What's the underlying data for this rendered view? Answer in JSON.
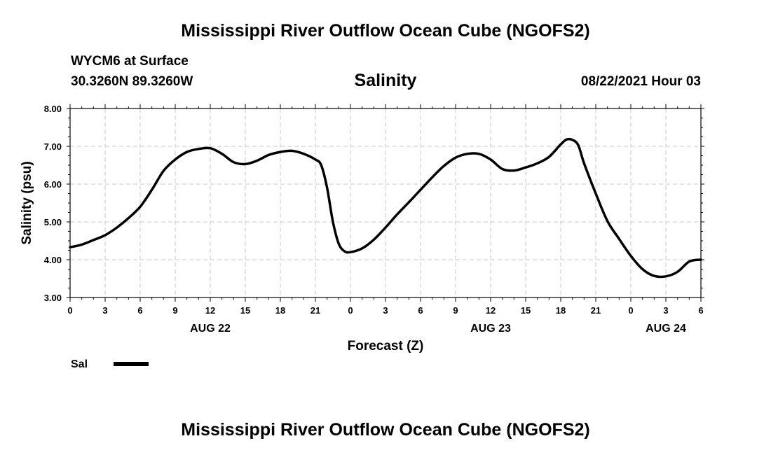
{
  "header": {
    "title": "Mississippi River Outflow Ocean Cube (NGOFS2)",
    "station": "WYCM6 at Surface",
    "coords": "30.3260N  89.3260W",
    "forecast_time": "08/22/2021 Hour 03"
  },
  "footer": {
    "title": "Mississippi River Outflow Ocean Cube (NGOFS2)"
  },
  "colors": {
    "line": "#000000",
    "grid": "#c8c8c8"
  },
  "chart_data": {
    "type": "line",
    "title": "Salinity",
    "xlabel": "Forecast (Z)",
    "ylabel": "Salinity (psu)",
    "x_unit": "forecast hour from 08/22 00Z",
    "xlim": [
      0,
      54
    ],
    "ylim": [
      3.0,
      8.0
    ],
    "y_ticks": [
      "3.00",
      "4.00",
      "5.00",
      "6.00",
      "7.00",
      "8.00"
    ],
    "x_tick_labels": [
      "0",
      "3",
      "6",
      "9",
      "12",
      "15",
      "18",
      "21",
      "0",
      "3",
      "6",
      "9",
      "12",
      "15",
      "18",
      "21",
      "0",
      "3",
      "6"
    ],
    "date_labels": [
      {
        "x": 12,
        "label": "AUG 22"
      },
      {
        "x": 36,
        "label": "AUG 23"
      },
      {
        "x": 51,
        "label": "AUG 24"
      }
    ],
    "grid": true,
    "legend_position": "bottom-left",
    "series": [
      {
        "name": "Sal",
        "x": [
          0,
          1,
          2,
          3,
          4,
          5,
          6,
          7,
          8,
          9,
          10,
          11,
          12,
          13,
          14,
          15,
          16,
          17,
          18,
          19,
          20,
          21,
          21.5,
          22,
          22.5,
          23,
          23.5,
          24,
          25,
          26,
          27,
          28,
          29,
          30,
          31,
          32,
          33,
          34,
          35,
          36,
          37,
          38,
          39,
          40,
          41,
          42,
          42.5,
          43,
          43.5,
          44,
          45,
          46,
          47,
          48,
          49,
          50,
          51,
          52,
          53,
          54
        ],
        "values": [
          4.33,
          4.4,
          4.52,
          4.65,
          4.85,
          5.1,
          5.4,
          5.85,
          6.35,
          6.65,
          6.85,
          6.93,
          6.95,
          6.8,
          6.58,
          6.53,
          6.62,
          6.77,
          6.85,
          6.88,
          6.8,
          6.65,
          6.5,
          5.9,
          5.0,
          4.42,
          4.22,
          4.2,
          4.3,
          4.53,
          4.85,
          5.2,
          5.52,
          5.85,
          6.18,
          6.48,
          6.7,
          6.8,
          6.8,
          6.65,
          6.4,
          6.36,
          6.44,
          6.55,
          6.72,
          7.05,
          7.18,
          7.17,
          7.03,
          6.55,
          5.75,
          5.02,
          4.55,
          4.1,
          3.75,
          3.57,
          3.56,
          3.68,
          3.95,
          4.0
        ]
      }
    ]
  }
}
